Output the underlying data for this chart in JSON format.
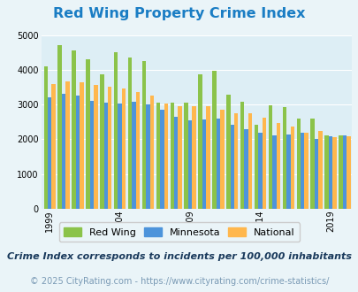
{
  "title": "Red Wing Property Crime Index",
  "subtitle": "Crime Index corresponds to incidents per 100,000 inhabitants",
  "footer": "© 2025 CityRating.com - https://www.cityrating.com/crime-statistics/",
  "years": [
    1999,
    2000,
    2001,
    2002,
    2003,
    2004,
    2005,
    2006,
    2007,
    2008,
    2009,
    2010,
    2011,
    2012,
    2013,
    2014,
    2015,
    2016,
    2017,
    2018,
    2019,
    2020
  ],
  "red_wing": [
    4100,
    4720,
    4550,
    4300,
    3870,
    4500,
    4360,
    4250,
    3060,
    3050,
    3060,
    3870,
    3960,
    3280,
    3090,
    2420,
    2980,
    2920,
    2600,
    2600,
    2120,
    2100
  ],
  "minnesota": [
    3200,
    3300,
    3270,
    3100,
    3050,
    3040,
    3090,
    3000,
    2850,
    2640,
    2550,
    2580,
    2600,
    2420,
    2290,
    2200,
    2120,
    2140,
    2200,
    2010,
    2090,
    2100
  ],
  "national": [
    3600,
    3670,
    3640,
    3570,
    3510,
    3450,
    3360,
    3260,
    3040,
    2960,
    2940,
    2940,
    2860,
    2750,
    2740,
    2620,
    2480,
    2360,
    2200,
    2250,
    2050,
    2080
  ],
  "bar_width": 0.28,
  "color_red_wing": "#8bc34a",
  "color_minnesota": "#4d94db",
  "color_national": "#ffb74d",
  "background_color": "#eaf4f8",
  "plot_bg": "#ddeef5",
  "ylim": [
    0,
    5000
  ],
  "yticks": [
    0,
    1000,
    2000,
    3000,
    4000,
    5000
  ],
  "xlabel_years": [
    1999,
    2004,
    2009,
    2014,
    2019
  ],
  "title_color": "#1a7dc4",
  "subtitle_color": "#1a3a5c",
  "footer_color": "#7a9ab5",
  "title_fontsize": 11.5,
  "subtitle_fontsize": 8.0,
  "footer_fontsize": 7.0,
  "tick_fontsize": 7.0,
  "legend_fontsize": 8.0
}
